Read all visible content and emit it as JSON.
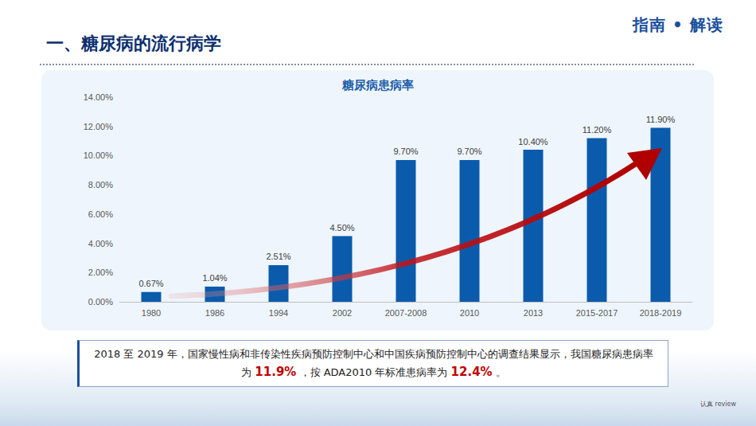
{
  "header": {
    "title": "一、糖尿病的流行病学",
    "badge": "指南 • 解读"
  },
  "chart_data": {
    "type": "bar",
    "title": "糖尿病患病率",
    "categories": [
      "1980",
      "1986",
      "1994",
      "2002",
      "2007-2008",
      "2010",
      "2013",
      "2015-2017",
      "2018-2019"
    ],
    "values": [
      0.67,
      1.04,
      2.51,
      4.5,
      9.7,
      9.7,
      10.4,
      11.2,
      11.9
    ],
    "value_labels": [
      "0.67%",
      "1.04%",
      "2.51%",
      "4.50%",
      "9.70%",
      "9.70%",
      "10.40%",
      "11.20%",
      "11.90%"
    ],
    "color": "#0a5bab",
    "ylim": [
      0,
      14
    ],
    "yticks": [
      {
        "value": 0,
        "label": "0.00%"
      },
      {
        "value": 2,
        "label": "2.00%"
      },
      {
        "value": 4,
        "label": "4.00%"
      },
      {
        "value": 6,
        "label": "6.00%"
      },
      {
        "value": 8,
        "label": "8.00%"
      },
      {
        "value": 10,
        "label": "10.00%"
      },
      {
        "value": 12,
        "label": "12.00%"
      },
      {
        "value": 14,
        "label": "14.00%"
      }
    ],
    "grid": false,
    "data_labels": true
  },
  "note": {
    "segments": [
      {
        "text": "2018 至 2019 年，国家慢性病和非传染性疾病预防控制中心和中国疾病预防控制中心的调查结果显示，我国糖尿病患病率为 "
      },
      {
        "text": "11.9%",
        "color": "#c00000"
      },
      {
        "text": " ，按 ADA2010 年标准患病率为 "
      },
      {
        "text": "12.4%",
        "color": "#c00000"
      },
      {
        "text": " 。"
      }
    ]
  },
  "footer": "认真 review"
}
